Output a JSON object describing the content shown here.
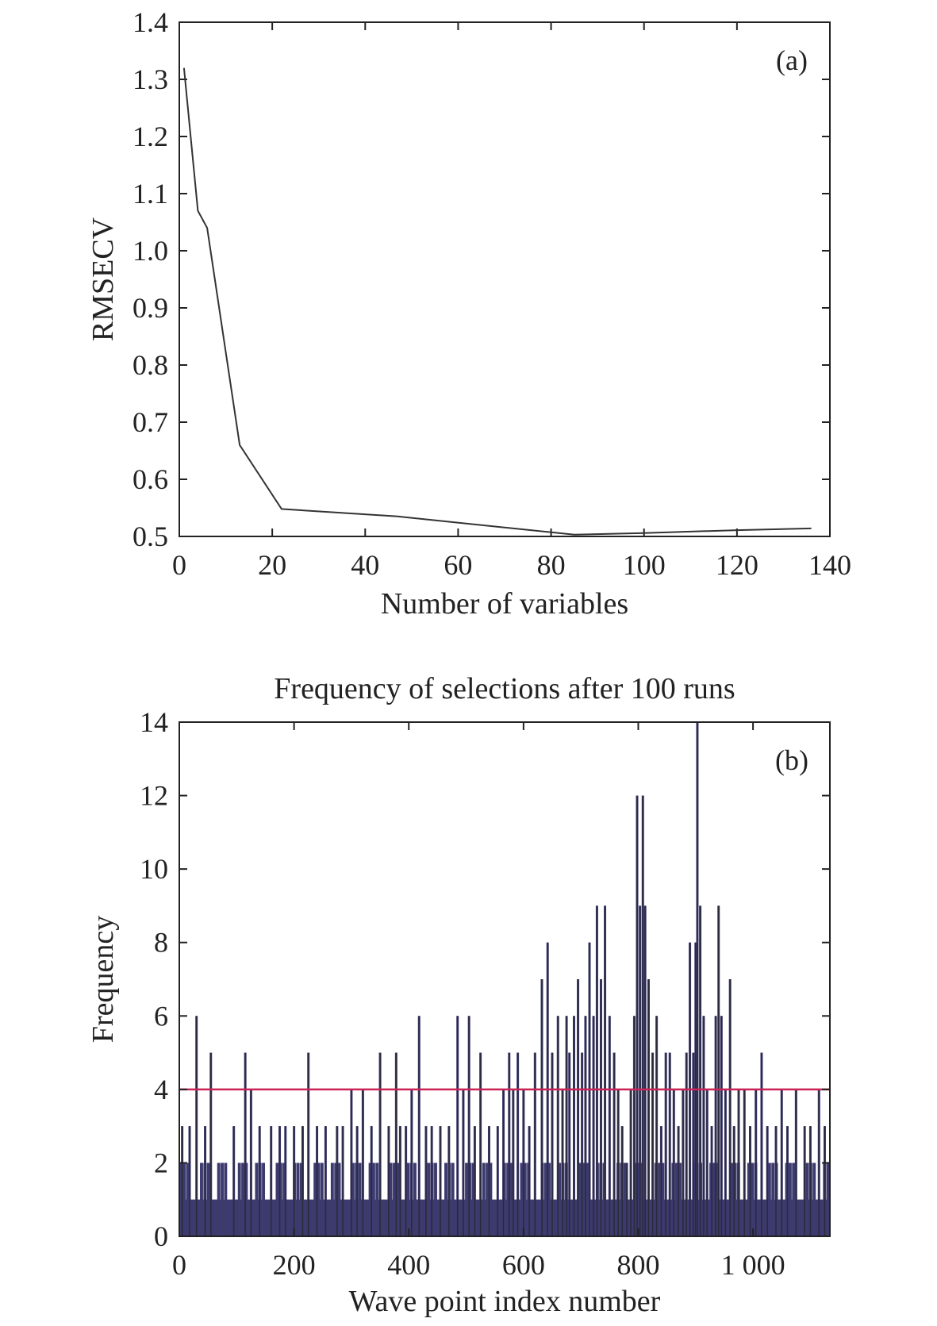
{
  "chart_data": [
    {
      "type": "line",
      "panel_label": "(a)",
      "title": "",
      "xlabel": "Number of variables",
      "ylabel": "RMSECV",
      "xlim": [
        0,
        140
      ],
      "ylim": [
        0.5,
        1.4
      ],
      "xticks": [
        "0",
        "20",
        "40",
        "60",
        "80",
        "100",
        "120",
        "140"
      ],
      "yticks": [
        "0.5",
        "0.6",
        "0.7",
        "0.8",
        "0.9",
        "1.0",
        "1.1",
        "1.2",
        "1.3",
        "1.4"
      ],
      "grid": false,
      "series": [
        {
          "x": [
            1,
            4,
            6,
            13,
            22,
            47,
            85,
            100,
            120,
            136
          ],
          "y": [
            1.32,
            1.07,
            1.04,
            0.66,
            0.548,
            0.535,
            0.503,
            0.506,
            0.511,
            0.514
          ],
          "color": "#333333"
        }
      ]
    },
    {
      "type": "bar",
      "panel_label": "(b)",
      "title": "Frequency of selections after 100 runs",
      "xlabel": "Wave point index number",
      "ylabel": "Frequency",
      "xlim": [
        0,
        1134
      ],
      "ylim": [
        0,
        14
      ],
      "xticks": [
        "0",
        "200",
        "400",
        "600",
        "800",
        "1 000"
      ],
      "yticks": [
        "0",
        "2",
        "4",
        "6",
        "8",
        "10",
        "12",
        "14"
      ],
      "grid": false,
      "bar_color": "#3d3a6e",
      "threshold": {
        "value": 4,
        "color": "#cc2255"
      },
      "peaks": [
        {
          "x": 5,
          "v": 3
        },
        {
          "x": 18,
          "v": 3
        },
        {
          "x": 30,
          "v": 6
        },
        {
          "x": 45,
          "v": 3
        },
        {
          "x": 55,
          "v": 5
        },
        {
          "x": 95,
          "v": 3
        },
        {
          "x": 115,
          "v": 5
        },
        {
          "x": 125,
          "v": 4
        },
        {
          "x": 140,
          "v": 3
        },
        {
          "x": 160,
          "v": 3
        },
        {
          "x": 175,
          "v": 3
        },
        {
          "x": 185,
          "v": 3
        },
        {
          "x": 200,
          "v": 3
        },
        {
          "x": 215,
          "v": 3
        },
        {
          "x": 225,
          "v": 5
        },
        {
          "x": 240,
          "v": 3
        },
        {
          "x": 255,
          "v": 3
        },
        {
          "x": 275,
          "v": 3
        },
        {
          "x": 285,
          "v": 3
        },
        {
          "x": 300,
          "v": 4
        },
        {
          "x": 310,
          "v": 3
        },
        {
          "x": 320,
          "v": 4
        },
        {
          "x": 335,
          "v": 3
        },
        {
          "x": 350,
          "v": 5
        },
        {
          "x": 365,
          "v": 3
        },
        {
          "x": 378,
          "v": 5
        },
        {
          "x": 385,
          "v": 3
        },
        {
          "x": 395,
          "v": 3
        },
        {
          "x": 405,
          "v": 4
        },
        {
          "x": 418,
          "v": 6
        },
        {
          "x": 430,
          "v": 3
        },
        {
          "x": 440,
          "v": 3
        },
        {
          "x": 455,
          "v": 3
        },
        {
          "x": 470,
          "v": 3
        },
        {
          "x": 485,
          "v": 6
        },
        {
          "x": 495,
          "v": 4
        },
        {
          "x": 505,
          "v": 6
        },
        {
          "x": 515,
          "v": 3
        },
        {
          "x": 525,
          "v": 5
        },
        {
          "x": 540,
          "v": 3
        },
        {
          "x": 555,
          "v": 3
        },
        {
          "x": 565,
          "v": 4
        },
        {
          "x": 575,
          "v": 5
        },
        {
          "x": 582,
          "v": 4
        },
        {
          "x": 590,
          "v": 5
        },
        {
          "x": 600,
          "v": 4
        },
        {
          "x": 610,
          "v": 3
        },
        {
          "x": 620,
          "v": 5
        },
        {
          "x": 632,
          "v": 7
        },
        {
          "x": 642,
          "v": 8
        },
        {
          "x": 650,
          "v": 5
        },
        {
          "x": 660,
          "v": 6
        },
        {
          "x": 668,
          "v": 4
        },
        {
          "x": 675,
          "v": 6
        },
        {
          "x": 680,
          "v": 5
        },
        {
          "x": 688,
          "v": 6
        },
        {
          "x": 695,
          "v": 7
        },
        {
          "x": 702,
          "v": 5
        },
        {
          "x": 708,
          "v": 6
        },
        {
          "x": 715,
          "v": 8
        },
        {
          "x": 722,
          "v": 6
        },
        {
          "x": 728,
          "v": 9
        },
        {
          "x": 735,
          "v": 7
        },
        {
          "x": 742,
          "v": 9
        },
        {
          "x": 750,
          "v": 6
        },
        {
          "x": 758,
          "v": 5
        },
        {
          "x": 765,
          "v": 4
        },
        {
          "x": 772,
          "v": 3
        },
        {
          "x": 780,
          "v": 2
        },
        {
          "x": 787,
          "v": 4
        },
        {
          "x": 793,
          "v": 6
        },
        {
          "x": 798,
          "v": 12
        },
        {
          "x": 803,
          "v": 9
        },
        {
          "x": 808,
          "v": 12
        },
        {
          "x": 812,
          "v": 9
        },
        {
          "x": 818,
          "v": 7
        },
        {
          "x": 825,
          "v": 5
        },
        {
          "x": 832,
          "v": 6
        },
        {
          "x": 840,
          "v": 3
        },
        {
          "x": 848,
          "v": 5
        },
        {
          "x": 855,
          "v": 5
        },
        {
          "x": 862,
          "v": 4
        },
        {
          "x": 870,
          "v": 3
        },
        {
          "x": 878,
          "v": 4
        },
        {
          "x": 884,
          "v": 5
        },
        {
          "x": 890,
          "v": 8
        },
        {
          "x": 896,
          "v": 5
        },
        {
          "x": 900,
          "v": 8
        },
        {
          "x": 903,
          "v": 14
        },
        {
          "x": 908,
          "v": 9
        },
        {
          "x": 914,
          "v": 6
        },
        {
          "x": 920,
          "v": 4
        },
        {
          "x": 928,
          "v": 3
        },
        {
          "x": 935,
          "v": 6
        },
        {
          "x": 940,
          "v": 9
        },
        {
          "x": 945,
          "v": 6
        },
        {
          "x": 952,
          "v": 4
        },
        {
          "x": 960,
          "v": 7
        },
        {
          "x": 967,
          "v": 3
        },
        {
          "x": 975,
          "v": 4
        },
        {
          "x": 985,
          "v": 4
        },
        {
          "x": 995,
          "v": 3
        },
        {
          "x": 1005,
          "v": 4
        },
        {
          "x": 1015,
          "v": 5
        },
        {
          "x": 1025,
          "v": 3
        },
        {
          "x": 1040,
          "v": 3
        },
        {
          "x": 1050,
          "v": 4
        },
        {
          "x": 1060,
          "v": 3
        },
        {
          "x": 1075,
          "v": 4
        },
        {
          "x": 1090,
          "v": 3
        },
        {
          "x": 1100,
          "v": 3
        },
        {
          "x": 1115,
          "v": 4
        },
        {
          "x": 1125,
          "v": 3
        }
      ]
    }
  ]
}
